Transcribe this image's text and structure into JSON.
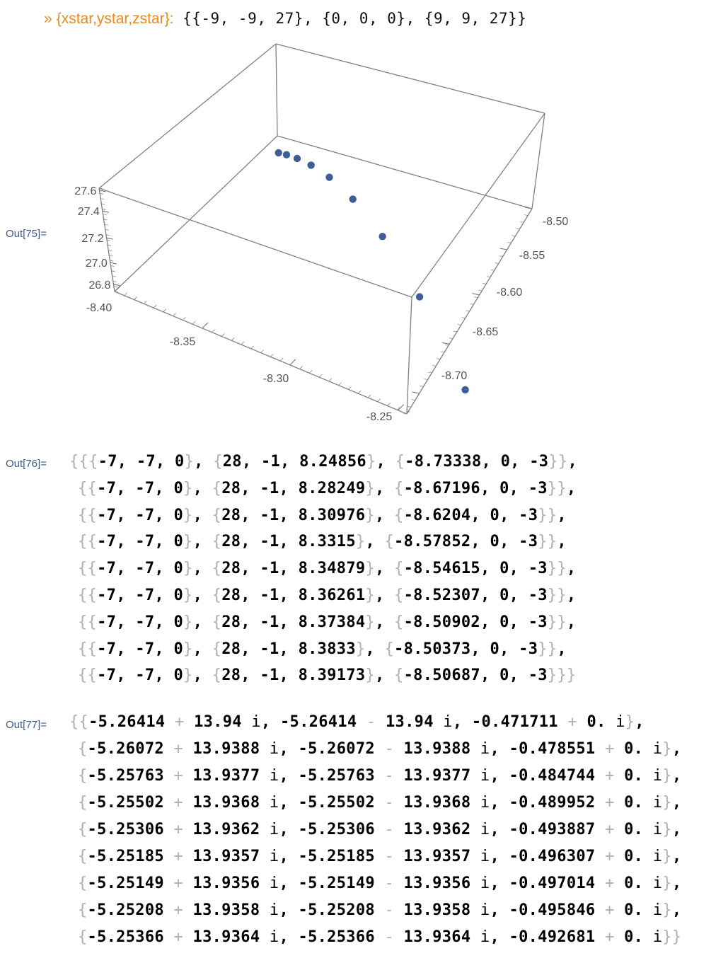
{
  "echo": {
    "label": "{xstar,ystar,zstar}:",
    "value": "{{-9, -9, 27}, {0, 0, 0}, {9, 9, 27}}"
  },
  "out75": {
    "label": "Out[75]=",
    "chart_data": {
      "type": "scatter",
      "dimension": 3,
      "points": [
        {
          "x": -8.39173,
          "y": -8.50687,
          "z": 27
        },
        {
          "x": -8.3833,
          "y": -8.50373,
          "z": 27
        },
        {
          "x": -8.37384,
          "y": -8.50902,
          "z": 27
        },
        {
          "x": -8.36261,
          "y": -8.52307,
          "z": 27
        },
        {
          "x": -8.34879,
          "y": -8.54615,
          "z": 27
        },
        {
          "x": -8.3315,
          "y": -8.57852,
          "z": 27
        },
        {
          "x": -8.30976,
          "y": -8.6204,
          "z": 27
        },
        {
          "x": -8.28249,
          "y": -8.67196,
          "z": 27
        },
        {
          "x": -8.24856,
          "y": -8.73338,
          "z": 27
        }
      ],
      "x_ticks": [
        "-8.40",
        "-8.35",
        "-8.30",
        "-8.25"
      ],
      "y_ticks": [
        "-8.50",
        "-8.55",
        "-8.60",
        "-8.65",
        "-8.70"
      ],
      "z_ticks": [
        "27.6",
        "27.4",
        "27.2",
        "27.0",
        "26.8"
      ],
      "point_color": "#3f5d99",
      "box_color": "#808080"
    }
  },
  "out76": {
    "label": "Out[76]=",
    "rows": [
      [
        "-8.24856",
        "-8.73338"
      ],
      [
        "-8.28249",
        "-8.67196"
      ],
      [
        "-8.30976",
        "-8.6204"
      ],
      [
        "-8.3315",
        "-8.57852"
      ],
      [
        "-8.34879",
        "-8.54615"
      ],
      [
        "-8.36261",
        "-8.52307"
      ],
      [
        "-8.37384",
        "-8.50902"
      ],
      [
        "-8.3833",
        "-8.50373"
      ],
      [
        "-8.39173",
        "-8.50687"
      ]
    ],
    "row_texts": [
      "{{-7, -7, 0}, {28, -1, 8.24856}, {-8.73338, 0, -3}},",
      "{{-7, -7, 0}, {28, -1, 8.28249}, {-8.67196, 0, -3}},",
      "{{-7, -7, 0}, {28, -1, 8.30976}, {-8.6204, 0, -3}},",
      "{{-7, -7, 0}, {28, -1, 8.3315}, {-8.57852, 0, -3}},",
      "{{-7, -7, 0}, {28, -1, 8.34879}, {-8.54615, 0, -3}},",
      "{{-7, -7, 0}, {28, -1, 8.36261}, {-8.52307, 0, -3}},",
      "{{-7, -7, 0}, {28, -1, 8.37384}, {-8.50902, 0, -3}},",
      "{{-7, -7, 0}, {28, -1, 8.3833}, {-8.50373, 0, -3}},",
      "{{-7, -7, 0}, {28, -1, 8.39173}, {-8.50687, 0, -3}}}"
    ]
  },
  "out77": {
    "label": "Out[77]=",
    "rows": [
      {
        "re": "-5.26414",
        "im": "13.94",
        "r3": "-0.471711"
      },
      {
        "re": "-5.26072",
        "im": "13.9388",
        "r3": "-0.478551"
      },
      {
        "re": "-5.25763",
        "im": "13.9377",
        "r3": "-0.484744"
      },
      {
        "re": "-5.25502",
        "im": "13.9368",
        "r3": "-0.489952"
      },
      {
        "re": "-5.25306",
        "im": "13.9362",
        "r3": "-0.493887"
      },
      {
        "re": "-5.25185",
        "im": "13.9357",
        "r3": "-0.496307"
      },
      {
        "re": "-5.25149",
        "im": "13.9356",
        "r3": "-0.497014"
      },
      {
        "re": "-5.25208",
        "im": "13.9358",
        "r3": "-0.495846"
      },
      {
        "re": "-5.25366",
        "im": "13.9364",
        "r3": "-0.492681"
      }
    ]
  }
}
